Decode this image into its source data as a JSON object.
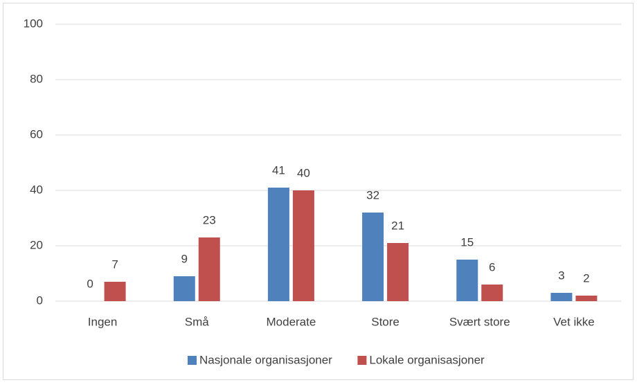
{
  "chart_data": {
    "type": "bar",
    "categories": [
      "Ingen",
      "Små",
      "Moderate",
      "Store",
      "Svært store",
      "Vet ikke"
    ],
    "series": [
      {
        "name": "Nasjonale organisasjoner",
        "color": "#4f81bd",
        "values": [
          0,
          9,
          41,
          32,
          15,
          3
        ]
      },
      {
        "name": "Lokale organisasjoner",
        "color": "#c0504d",
        "values": [
          7,
          23,
          40,
          21,
          6,
          2
        ]
      }
    ],
    "ylim": [
      0,
      100
    ],
    "yticks": [
      0,
      20,
      40,
      60,
      80,
      100
    ],
    "grid": true,
    "legend": "bottom"
  }
}
